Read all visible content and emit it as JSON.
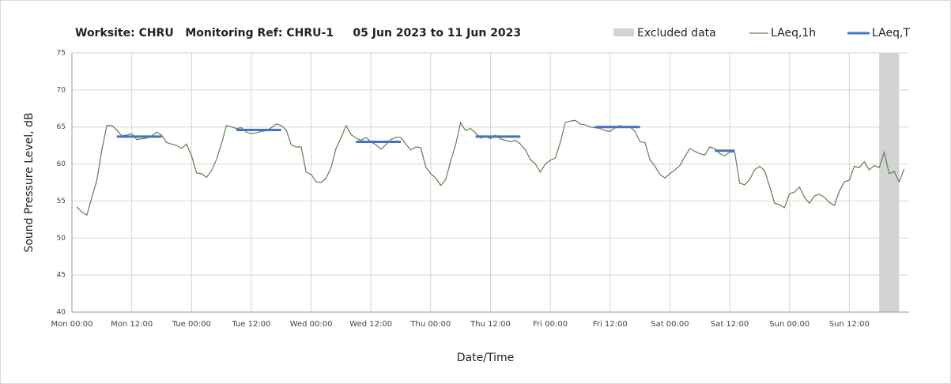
{
  "chart_data": {
    "type": "line",
    "title": "Worksite: CHRU   Monitoring Ref: CHRU-1     05 Jun 2023 to 11 Jun 2023",
    "xlabel": "Date/Time",
    "ylabel": "Sound Pressure Level, dB",
    "xlim": [
      0,
      168
    ],
    "ylim": [
      40,
      75
    ],
    "yticks": [
      40,
      45,
      50,
      55,
      60,
      65,
      70,
      75
    ],
    "xticks": [
      {
        "value": 0,
        "label": "Mon 00:00"
      },
      {
        "value": 12,
        "label": "Mon 12:00"
      },
      {
        "value": 24,
        "label": "Tue 00:00"
      },
      {
        "value": 36,
        "label": "Tue 12:00"
      },
      {
        "value": 48,
        "label": "Wed 00:00"
      },
      {
        "value": 60,
        "label": "Wed 12:00"
      },
      {
        "value": 72,
        "label": "Thu 00:00"
      },
      {
        "value": 84,
        "label": "Thu 12:00"
      },
      {
        "value": 96,
        "label": "Fri 00:00"
      },
      {
        "value": 108,
        "label": "Fri 12:00"
      },
      {
        "value": 120,
        "label": "Sat 00:00"
      },
      {
        "value": 132,
        "label": "Sat 12:00"
      },
      {
        "value": 144,
        "label": "Sun 00:00"
      },
      {
        "value": 156,
        "label": "Sun 12:00"
      }
    ],
    "grid": true,
    "excluded": {
      "name": "Excluded data",
      "color": "#d3d3d3",
      "x": [
        162,
        166
      ]
    },
    "x": [
      1,
      2,
      3,
      4,
      5,
      6,
      7,
      8,
      9,
      10,
      11,
      12,
      13,
      14,
      15,
      16,
      17,
      18,
      19,
      20,
      21,
      22,
      23,
      24,
      25,
      26,
      27,
      28,
      29,
      30,
      31,
      32,
      33,
      34,
      35,
      36,
      37,
      38,
      39,
      40,
      41,
      42,
      43,
      44,
      45,
      46,
      47,
      48,
      49,
      50,
      51,
      52,
      53,
      54,
      55,
      56,
      57,
      58,
      59,
      60,
      61,
      62,
      63,
      64,
      65,
      66,
      67,
      68,
      69,
      70,
      71,
      72,
      73,
      74,
      75,
      76,
      77,
      78,
      79,
      80,
      81,
      82,
      83,
      84,
      85,
      86,
      87,
      88,
      89,
      90,
      91,
      92,
      93,
      94,
      95,
      96,
      97,
      98,
      99,
      100,
      101,
      102,
      103,
      104,
      105,
      106,
      107,
      108,
      109,
      110,
      111,
      112,
      113,
      114,
      115,
      116,
      117,
      118,
      119,
      120,
      121,
      122,
      123,
      124,
      125,
      126,
      127,
      128,
      129,
      130,
      131,
      132,
      133,
      134,
      135,
      136,
      137,
      138,
      139,
      140,
      141,
      142,
      143,
      144,
      145,
      146,
      147,
      148,
      149,
      150,
      151,
      152,
      153,
      154,
      155,
      156,
      157,
      158,
      159,
      160,
      161,
      162,
      163,
      164,
      165,
      166,
      167
    ],
    "series": [
      {
        "name": "LAeq,1h",
        "color": "#5f7f4f",
        "values": [
          54.2,
          53.5,
          53.1,
          55.5,
          57.8,
          61.9,
          65.2,
          65.2,
          64.6,
          63.8,
          63.9,
          64.1,
          63.3,
          63.4,
          63.5,
          63.8,
          64.3,
          63.9,
          62.9,
          62.7,
          62.5,
          62.1,
          62.7,
          61.1,
          58.8,
          58.7,
          58.2,
          59.1,
          60.6,
          62.7,
          65.2,
          65.0,
          64.8,
          64.9,
          64.3,
          64.1,
          64.2,
          64.4,
          64.5,
          64.9,
          65.4,
          65.2,
          64.6,
          62.6,
          62.3,
          62.3,
          58.9,
          58.6,
          57.6,
          57.5,
          58.1,
          59.5,
          62.1,
          63.5,
          65.2,
          64.0,
          63.5,
          63.2,
          63.6,
          63.0,
          62.6,
          62.0,
          62.6,
          63.3,
          63.6,
          63.6,
          62.7,
          61.9,
          62.3,
          62.2,
          59.6,
          58.7,
          58.1,
          57.1,
          57.9,
          60.4,
          62.6,
          65.6,
          64.5,
          64.8,
          64.2,
          63.5,
          63.8,
          63.4,
          63.9,
          63.4,
          63.2,
          63.0,
          63.2,
          62.7,
          61.9,
          60.6,
          60.0,
          58.9,
          60.0,
          60.5,
          60.8,
          62.9,
          65.6,
          65.8,
          65.9,
          65.4,
          65.3,
          65.0,
          64.9,
          64.8,
          64.5,
          64.4,
          64.9,
          65.2,
          64.9,
          65.0,
          64.4,
          63.0,
          62.9,
          60.6,
          59.7,
          58.6,
          58.1,
          58.7,
          59.2,
          59.8,
          61.0,
          62.1,
          61.7,
          61.4,
          61.2,
          62.3,
          62.1,
          61.4,
          61.1,
          61.6,
          61.6,
          57.4,
          57.2,
          57.9,
          59.2,
          59.7,
          59.1,
          57.0,
          54.7,
          54.5,
          54.1,
          56.0,
          56.2,
          56.9,
          55.5,
          54.7,
          55.7,
          55.9,
          55.5,
          54.8,
          54.4,
          56.3,
          57.6,
          57.8,
          59.7,
          59.5,
          60.3,
          59.2,
          59.8,
          59.5,
          61.6,
          58.7,
          59.0,
          57.6,
          59.3
        ]
      },
      {
        "name": "LAeq,T",
        "color": "#4472c4",
        "segments": [
          {
            "x": [
              9,
              18
            ],
            "value": 63.7
          },
          {
            "x": [
              33,
              42
            ],
            "value": 64.6
          },
          {
            "x": [
              57,
              66
            ],
            "value": 63.0
          },
          {
            "x": [
              81,
              90
            ],
            "value": 63.7
          },
          {
            "x": [
              105,
              114
            ],
            "value": 65.0
          },
          {
            "x": [
              129,
              133
            ],
            "value": 61.8
          }
        ]
      }
    ]
  }
}
